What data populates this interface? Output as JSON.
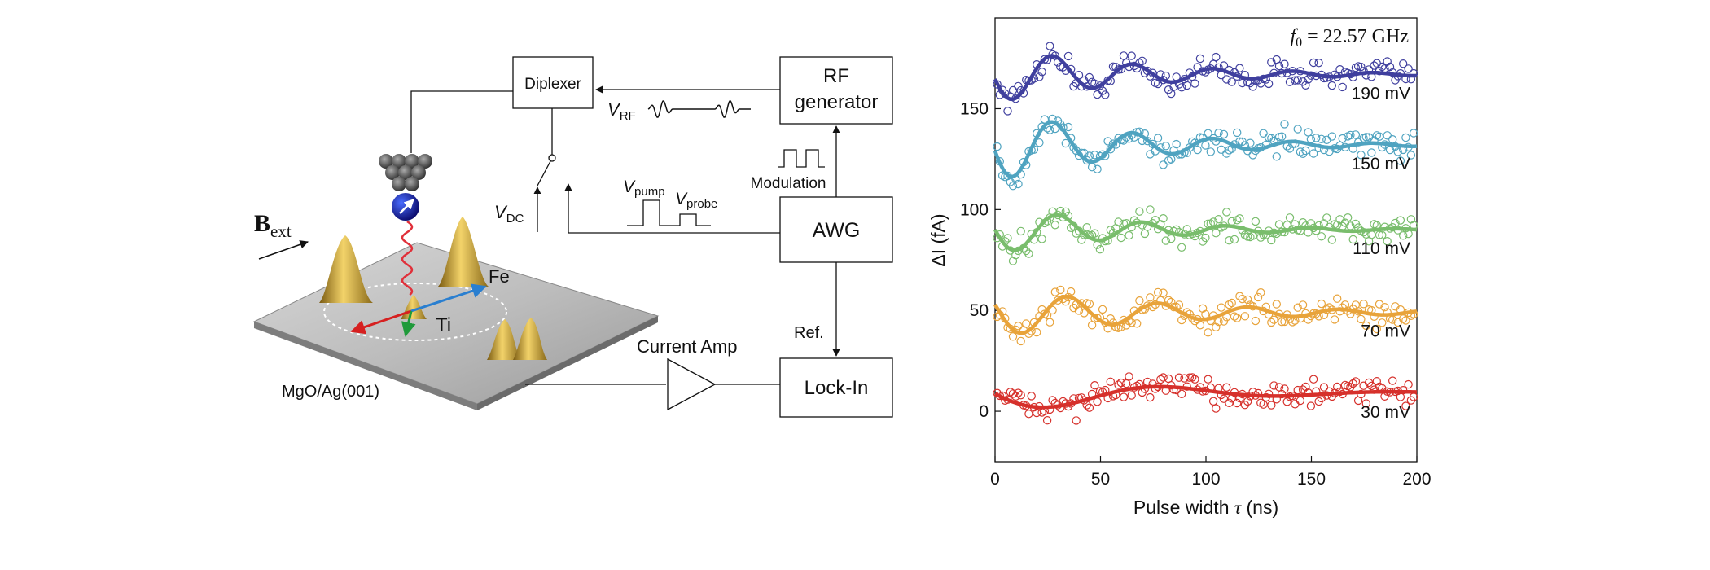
{
  "diagram": {
    "field_label": {
      "base": "B",
      "sub": "ext"
    },
    "substrate_label": "MgO/Ag(001)",
    "atom_labels": {
      "fe": "Fe",
      "ti": "Ti"
    },
    "blocks": {
      "diplexer": "Diplexer",
      "rf_line1": "RF",
      "rf_line2": "generator",
      "awg": "AWG",
      "lockin": "Lock-In"
    },
    "labels": {
      "v_rf": {
        "base": "V",
        "sub": "RF"
      },
      "v_dc": {
        "base": "V",
        "sub": "DC"
      },
      "v_pump": {
        "base": "V",
        "sub": "pump"
      },
      "v_probe": {
        "base": "V",
        "sub": "probe"
      },
      "modulation": "Modulation",
      "ref": "Ref.",
      "current_amp": "Current Amp"
    }
  },
  "chart_data": {
    "type": "scatter",
    "annotation": {
      "f_italic": "f",
      "f_sub": "0",
      "value": " = 22.57 GHz"
    },
    "xlabel_text": "Pulse width ",
    "xlabel_symbol": "τ",
    "xlabel_unit": " (ns)",
    "ylabel": "ΔI (fA)",
    "xlim": [
      0,
      200
    ],
    "ylim": [
      -25,
      195
    ],
    "xticks": [
      0,
      50,
      100,
      150,
      200
    ],
    "yticks": [
      0,
      50,
      100,
      150
    ],
    "series": [
      {
        "name": "190 mV",
        "color": "#3f3f9e",
        "offset": 167,
        "amp": 14,
        "decay": 65,
        "period": 38,
        "phase": 8.5
      },
      {
        "name": "150 mV",
        "color": "#4fa3c0",
        "offset": 132,
        "amp": 18,
        "decay": 60,
        "period": 38,
        "phase": 8.5
      },
      {
        "name": "110 mV",
        "color": "#79bd6c",
        "offset": 90,
        "amp": 12,
        "decay": 60,
        "period": 40,
        "phase": 10
      },
      {
        "name": "70 mV",
        "color": "#e8a33a",
        "offset": 49,
        "amp": 12,
        "decay": 80,
        "period": 43,
        "phase": 13
      },
      {
        "name": "30 mV",
        "color": "#d6302b",
        "offset": 9,
        "amp": 10,
        "decay": 70,
        "period": 110,
        "phase": 27
      }
    ]
  }
}
